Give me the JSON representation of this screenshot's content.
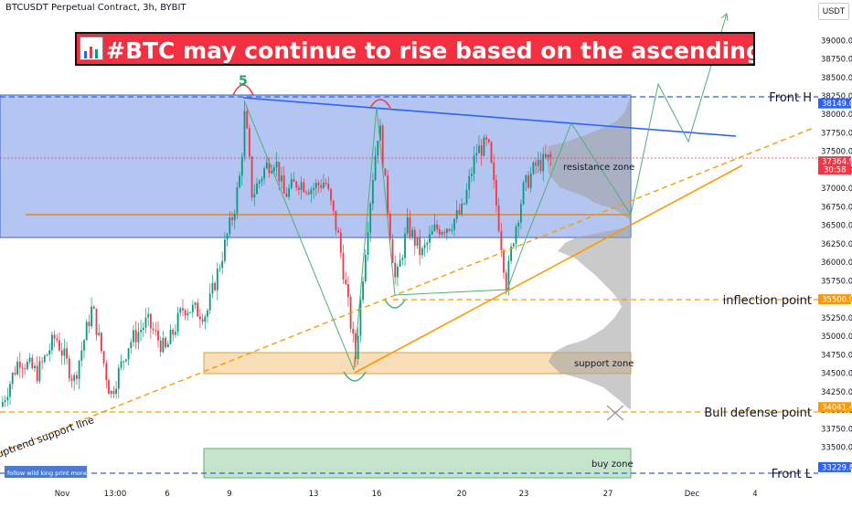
{
  "header": {
    "symbol_title": "BTCUSDT Perpetual Contract, 3h, BYBIT",
    "currency": "USDT"
  },
  "banner": {
    "text": "#BTC may continue to rise based on the ascending triangle",
    "left_icon": "bar-chart-icon",
    "right_icon": "trend-up-icon"
  },
  "chart_data": {
    "type": "candlestick",
    "title": "#BTC may continue to rise based on the ascending triangle",
    "ylim": [
      33000,
      39300
    ],
    "y_ticks": [
      33250,
      33500,
      33750,
      34000,
      34250,
      34500,
      34750,
      35000,
      35250,
      35500,
      35750,
      36000,
      36250,
      36500,
      36750,
      37000,
      37250,
      37500,
      37750,
      38000,
      38250,
      38500,
      38750,
      39000
    ],
    "x_ticks": [
      "Nov",
      "13:00",
      "6",
      "9",
      "13",
      "16",
      "20",
      "23",
      "27",
      "Dec",
      "4"
    ],
    "price_tags": [
      {
        "label": "Front H",
        "value": "38149.0",
        "color": "#2962ff"
      },
      {
        "label": "",
        "value": "37364.9",
        "sub": "30:58",
        "color": "#f23645"
      },
      {
        "label": "inflection point",
        "value": "35500.0",
        "color": "#ff9800"
      },
      {
        "label": "Bull defense point",
        "value": "34041.4",
        "color": "#ff9800"
      },
      {
        "label": "Front L",
        "value": "33229.8",
        "color": "#2962ff"
      }
    ],
    "zones": [
      {
        "name": "resistance zone",
        "from": 36330,
        "to": 38170
      },
      {
        "name": "support zone",
        "from": 34570,
        "to": 34840
      },
      {
        "name": "buy zone",
        "from": 33200,
        "to": 33580
      }
    ],
    "wave_label": "5",
    "trendline_label": "uptrend support line",
    "watermark": "follow wild king print money"
  },
  "colors": {
    "up": "#089981",
    "down": "#f23645",
    "blue_line": "#2962ff",
    "orange": "#ff9800",
    "wave": "#4caf78"
  }
}
